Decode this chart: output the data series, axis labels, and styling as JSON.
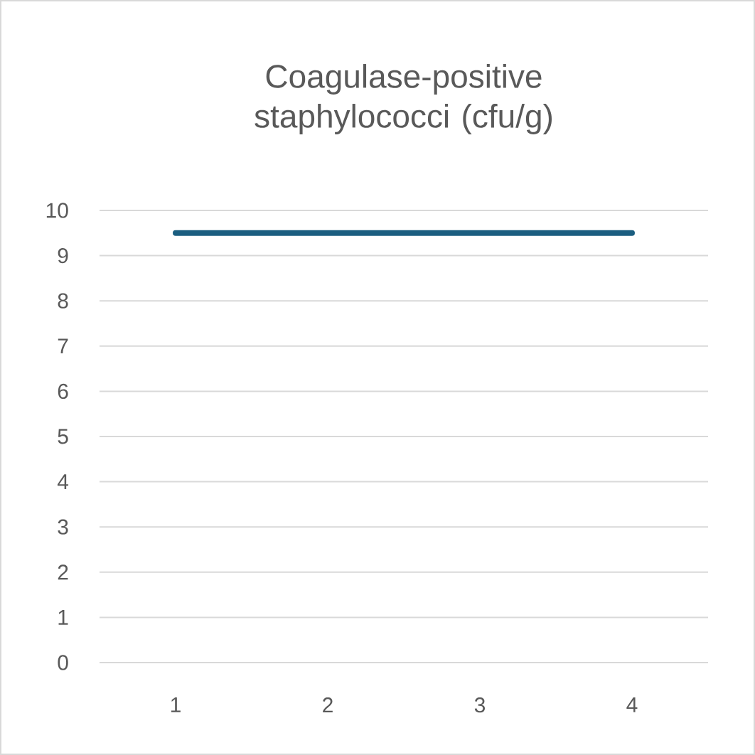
{
  "chart_data": {
    "type": "line",
    "title": "Coagulase-positive staphylococci (cfu/g)",
    "categories": [
      "1",
      "2",
      "3",
      "4"
    ],
    "series": [
      {
        "color": "#1b5e80",
        "values": [
          9.5,
          9.5,
          9.5,
          9.5
        ]
      }
    ],
    "ylim": [
      0,
      10
    ],
    "yticks": [
      0,
      1,
      2,
      3,
      4,
      5,
      6,
      7,
      8,
      9,
      10
    ],
    "grid": "y",
    "marker": "none",
    "line_style": "solid"
  }
}
